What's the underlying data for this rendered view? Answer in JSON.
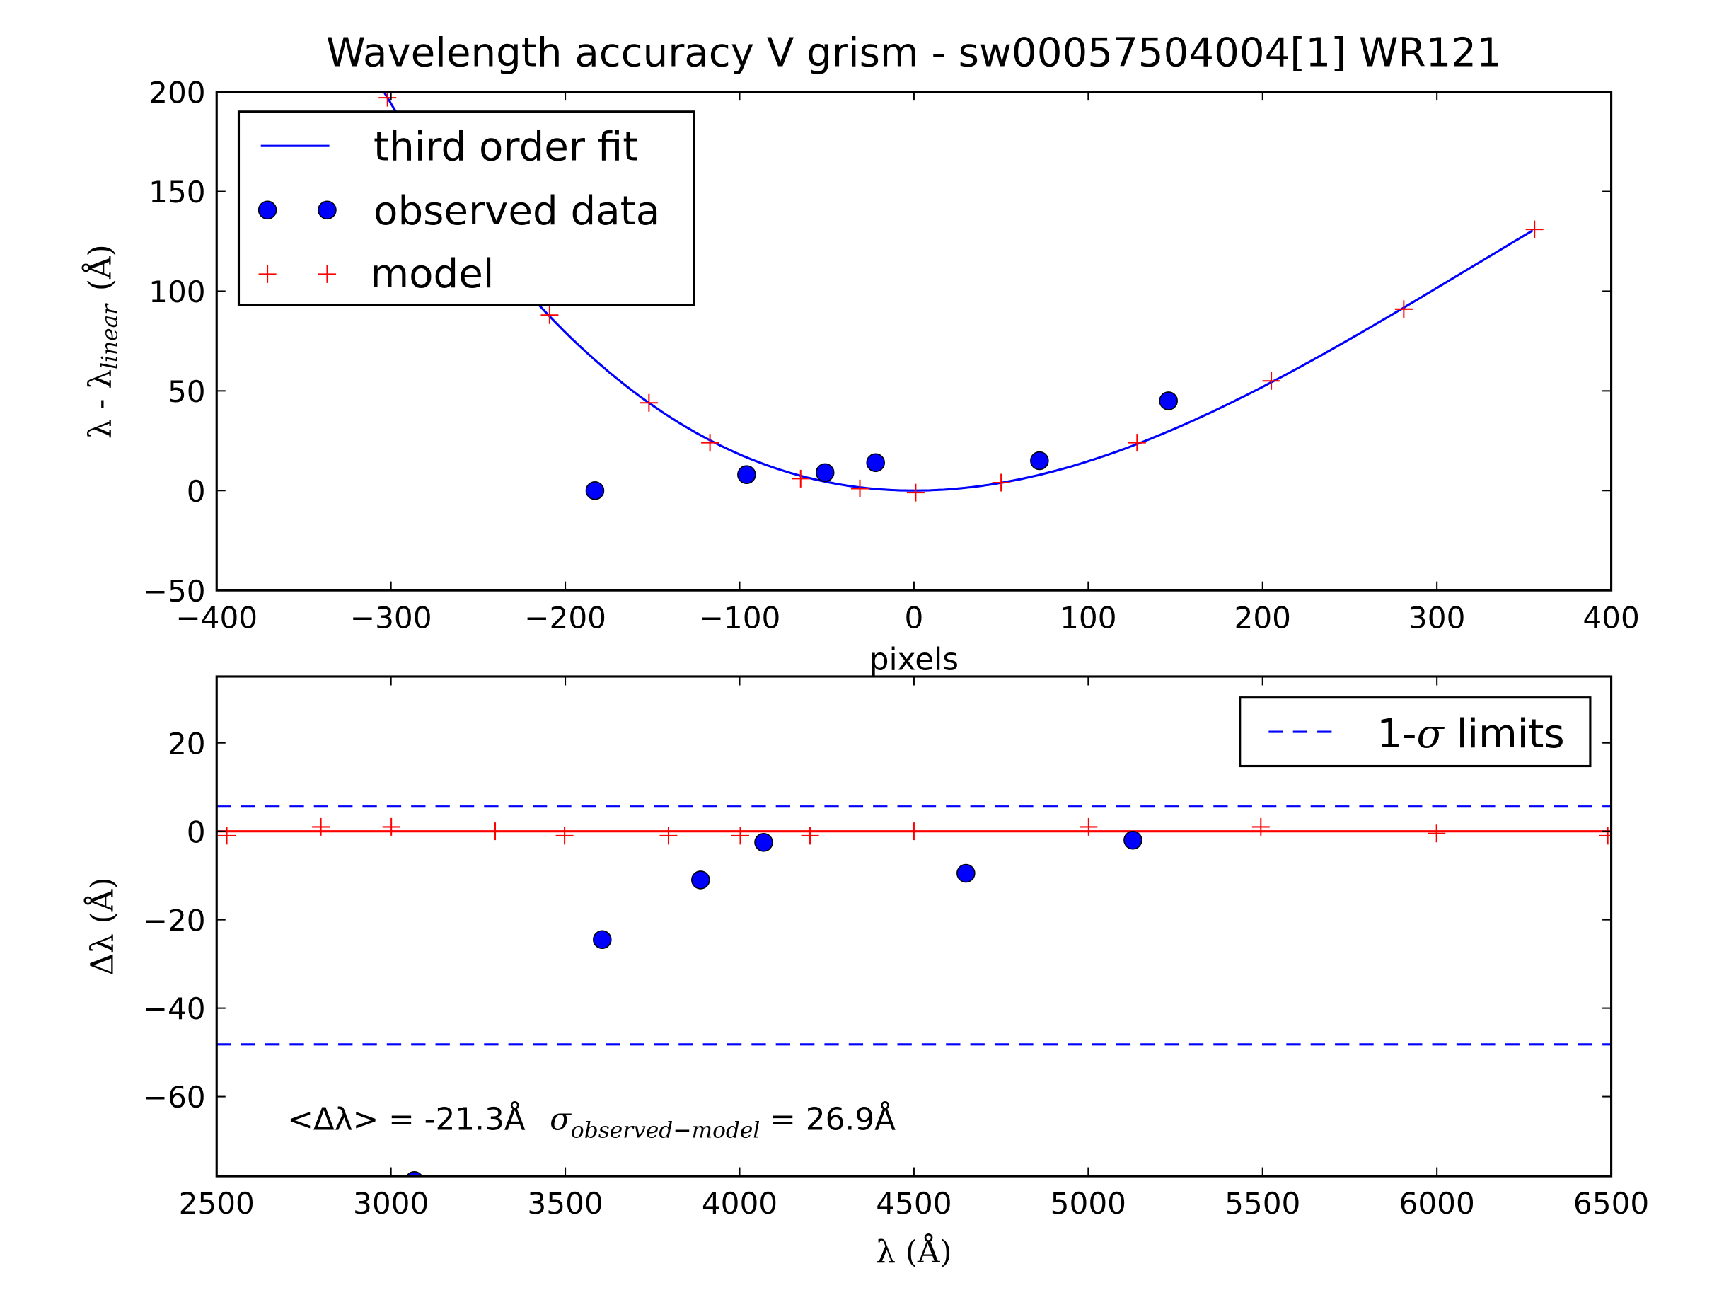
{
  "chart_data": [
    {
      "type": "line",
      "title": "Wavelength accuracy V grism - sw00057504004[1] WR121",
      "xlabel": "pixels",
      "ylabel_main": "λ - λ",
      "ylabel_sub": "linear",
      "ylabel_unit": "(Å)",
      "xlim": [
        -400,
        400
      ],
      "ylim": [
        -50,
        200
      ],
      "xticks": [
        -400,
        -300,
        -200,
        -100,
        0,
        100,
        200,
        300,
        400
      ],
      "xtick_labels": [
        "−400",
        "−300",
        "−200",
        "−100",
        "0",
        "100",
        "200",
        "300",
        "400"
      ],
      "yticks": [
        -50,
        0,
        50,
        100,
        150,
        200
      ],
      "ytick_labels": [
        "−50",
        "0",
        "50",
        "100",
        "150",
        "200"
      ],
      "legend": {
        "placement": "upper-left",
        "entries": [
          "third order fit",
          "observed data",
          "model"
        ]
      },
      "series": [
        {
          "name": "third order fit",
          "kind": "line",
          "color": "#0000ff",
          "polynomial_coefficients_c0_to_c3": [
            0,
            0,
            0.001643,
            -1.712e-06
          ],
          "x_range": [
            -305,
            356
          ]
        },
        {
          "name": "observed data",
          "kind": "scatter",
          "color": "#0000ff",
          "x": [
            -183,
            -96,
            -51,
            -22,
            72,
            146
          ],
          "y": [
            0,
            8,
            9,
            14,
            15,
            45
          ]
        },
        {
          "name": "model",
          "kind": "plus",
          "color": "#ff0000",
          "x": [
            -302,
            -209,
            -152,
            -117,
            -65,
            -31,
            1,
            50,
            128,
            205,
            281,
            356
          ],
          "y": [
            197,
            88,
            44,
            24,
            6,
            1,
            -1,
            4,
            24,
            55,
            91,
            131
          ]
        }
      ]
    },
    {
      "type": "scatter",
      "xlabel": "λ (Å)",
      "ylabel": "Δλ (Å)",
      "xlim": [
        2500,
        6500
      ],
      "ylim": [
        -78,
        35
      ],
      "xticks": [
        2500,
        3000,
        3500,
        4000,
        4500,
        5000,
        5500,
        6000,
        6500
      ],
      "xtick_labels": [
        "2500",
        "3000",
        "3500",
        "4000",
        "4500",
        "5000",
        "5500",
        "6000",
        "6500"
      ],
      "yticks": [
        -60,
        -40,
        -20,
        0,
        20
      ],
      "ytick_labels": [
        "−60",
        "−40",
        "−20",
        "0",
        "20"
      ],
      "legend": {
        "placement": "upper-right",
        "entries": [
          "1-σ limits"
        ]
      },
      "legend_label_prefix": "1-",
      "legend_label_sigma": "σ",
      "legend_label_suffix": " limits",
      "series": [
        {
          "name": "zero line",
          "kind": "hline",
          "color": "#ff0000",
          "y": 0
        },
        {
          "name": "1-σ limits",
          "kind": "dashed-hlines",
          "color": "#0000ff",
          "y": [
            5.6,
            -48.2
          ]
        },
        {
          "name": "observed residuals",
          "kind": "scatter",
          "color": "#0000ff",
          "x": [
            3067,
            3606,
            3888,
            4069,
            4649,
            5128
          ],
          "y": [
            -79,
            -24.5,
            -11,
            -2.5,
            -9.5,
            -2
          ]
        },
        {
          "name": "model residuals",
          "kind": "plus",
          "color": "#ff0000",
          "x": [
            2529,
            2799,
            3001,
            3299,
            3498,
            3796,
            4002,
            4202,
            4500,
            5001,
            5495,
            5999,
            6490
          ],
          "y": [
            -1,
            1,
            1,
            0,
            -1,
            -1,
            -1,
            -1,
            0,
            1,
            1,
            -0.5,
            -1
          ]
        }
      ],
      "annotation": {
        "mean_text": "<Δλ> = -21.3Å",
        "sigma_symbol": "σ",
        "sigma_sub": "observed−model",
        "sigma_value_text": " = 26.9Å"
      }
    }
  ]
}
